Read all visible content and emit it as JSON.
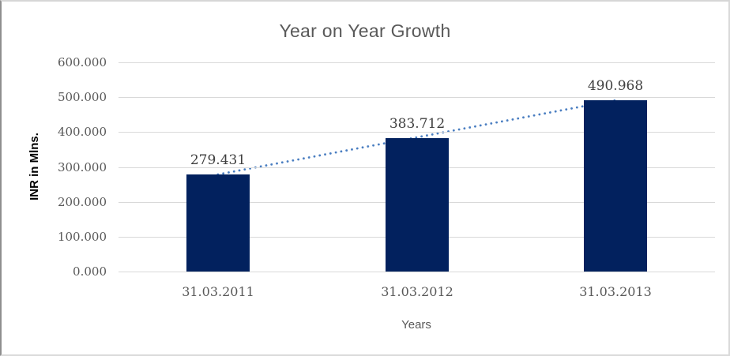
{
  "chart_data": {
    "type": "bar",
    "title": "Year on Year Growth",
    "categories": [
      "31.03.2011",
      "31.03.2012",
      "31.03.2013"
    ],
    "values": [
      279.431,
      383.712,
      490.968
    ],
    "data_labels": [
      "279.431",
      "383.712",
      "490.968"
    ],
    "xlabel": "Years",
    "ylabel": "INR in Mlns.",
    "ylim": [
      0,
      600
    ],
    "ytick_step": 100,
    "ytick_labels": [
      "600.000",
      "500.000",
      "400.000",
      "300.000",
      "200.000",
      "100.000",
      "0.000"
    ],
    "grid": true,
    "legend": "none",
    "trendline": {
      "style": "dotted",
      "from_category": "31.03.2011",
      "to_category": "31.03.2013"
    },
    "colors": {
      "bar": "#02215e",
      "trendline": "#4a7ec1",
      "gridline": "#d9d9d9",
      "title_text": "#595959",
      "tick_text": "#595959",
      "data_label_text": "#3f3f3f",
      "axis_title_text": "#000000"
    }
  }
}
